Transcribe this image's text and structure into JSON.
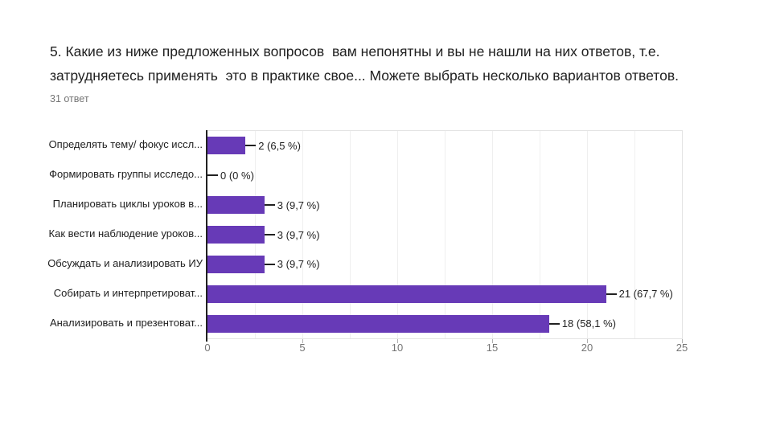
{
  "header": {
    "title": "5. Какие из ниже предложенных вопросов  вам непонятны и вы не нашли на них ответов, т.е. затрудняетесь применять  это в практике свое... Можете выбрать несколько вариантов ответов.",
    "responses_count": "31 ответ"
  },
  "chart_data": {
    "type": "bar",
    "orientation": "horizontal",
    "title": "5. Какие из ниже предложенных вопросов  вам непонятны и вы не нашли на них ответов, т.е. затрудняетесь применять  это в практике свое... Можете выбрать несколько вариантов ответов.",
    "subtitle": "31 ответ",
    "categories": [
      "Определять тему/ фокус иссл...",
      "Формировать группы исследо...",
      "Планировать циклы уроков в...",
      "Как вести наблюдение уроков...",
      "Обсуждать и анализировать ИУ",
      "Собирать и интерпретироват...",
      "Анализировать и презентоват..."
    ],
    "values": [
      2,
      0,
      3,
      3,
      3,
      21,
      18
    ],
    "value_labels": [
      "2 (6,5 %)",
      "0 (0 %)",
      "3 (9,7 %)",
      "3 (9,7 %)",
      "3 (9,7 %)",
      "21 (67,7 %)",
      "18 (58,1 %)"
    ],
    "x_ticks": [
      0,
      5,
      10,
      15,
      20,
      25
    ],
    "xlim": [
      0,
      25
    ],
    "grid_minor_step": 2.5,
    "grid": "on",
    "legend": "none",
    "bar_color": "#673ab7",
    "axis_color": "#212121",
    "gridline_color": "#efefef",
    "tick_label_color": "#757575",
    "label_color": "#212121"
  }
}
